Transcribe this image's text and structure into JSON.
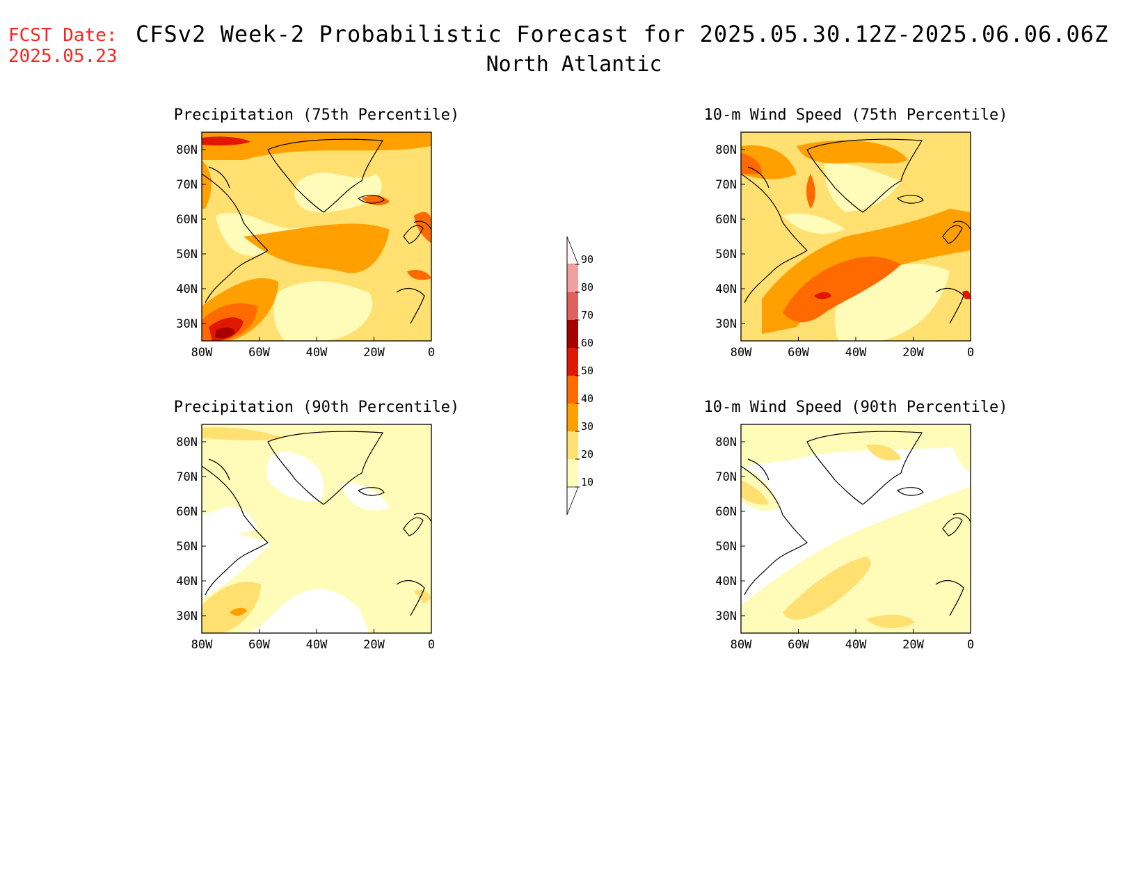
{
  "header": {
    "fcst_label": "FCST Date:",
    "fcst_date": "2025.05.23",
    "title": "CFSv2 Week-2 Probabilistic Forecast for 2025.05.30.12Z-2025.06.06.06Z",
    "region": "North Atlantic"
  },
  "panels": [
    {
      "id": "precip75",
      "title": "Precipitation (75th Percentile)"
    },
    {
      "id": "wind75",
      "title": "10-m Wind Speed (75th Percentile)"
    },
    {
      "id": "precip90",
      "title": "Precipitation (90th Percentile)"
    },
    {
      "id": "wind90",
      "title": "10-m Wind Speed (90th Percentile)"
    }
  ],
  "axes": {
    "lat_labels": [
      "80N",
      "70N",
      "60N",
      "50N",
      "40N",
      "30N"
    ],
    "lon_labels": [
      "80W",
      "60W",
      "40W",
      "20W",
      "0"
    ]
  },
  "colorbar": {
    "labels": [
      "90",
      "80",
      "70",
      "60",
      "50",
      "40",
      "30",
      "20",
      "10"
    ],
    "colors": [
      "#fff5f5",
      "#f0a0a0",
      "#e06060",
      "#a80000",
      "#e01800",
      "#ff6a00",
      "#ffa000",
      "#ffe070",
      "#fffbb8"
    ]
  }
}
